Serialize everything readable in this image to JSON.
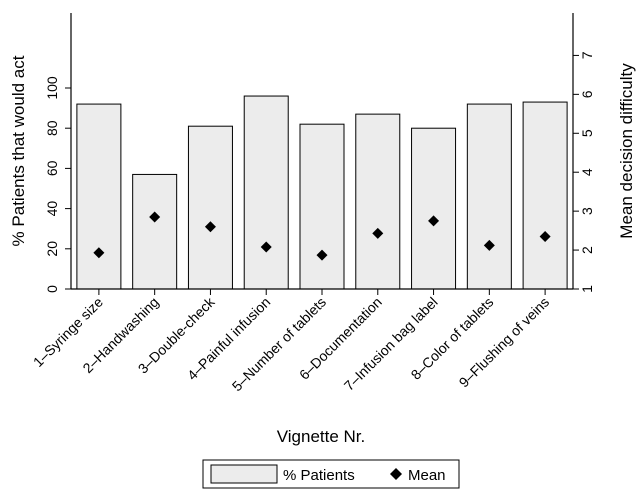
{
  "chart_data": {
    "type": "bar",
    "categories": [
      "1–Syringe size",
      "2–Handwashing",
      "3–Double-check",
      "4–Painful infusion",
      "5–Number of tablets",
      "6–Documentation",
      "7–Infusion bag label",
      "8–Color of tablets",
      "9–Flushing of veins"
    ],
    "series": [
      {
        "name": "% Patients",
        "type": "bar",
        "axis": "left",
        "values": [
          92,
          57,
          81,
          96,
          82,
          87,
          80,
          92,
          93
        ],
        "color": "#ececec"
      },
      {
        "name": "Mean",
        "type": "scatter",
        "marker": "diamond",
        "axis": "right",
        "values": [
          1.93,
          2.85,
          2.6,
          2.08,
          1.87,
          2.43,
          2.75,
          2.12,
          2.35
        ],
        "color": "#000000"
      }
    ],
    "xlabel": "Vignette Nr.",
    "ylabel": "% Patients that would act",
    "y2label": "Mean decision difficulty",
    "ylim": [
      0,
      100
    ],
    "yticks": [
      "0",
      "20",
      "40",
      "60",
      "80",
      "100"
    ],
    "y2lim": [
      1,
      7
    ],
    "y2ticks": [
      "1",
      "2",
      "3",
      "4",
      "5",
      "6",
      "7"
    ],
    "legend_position": "bottom-center",
    "grid": false
  }
}
